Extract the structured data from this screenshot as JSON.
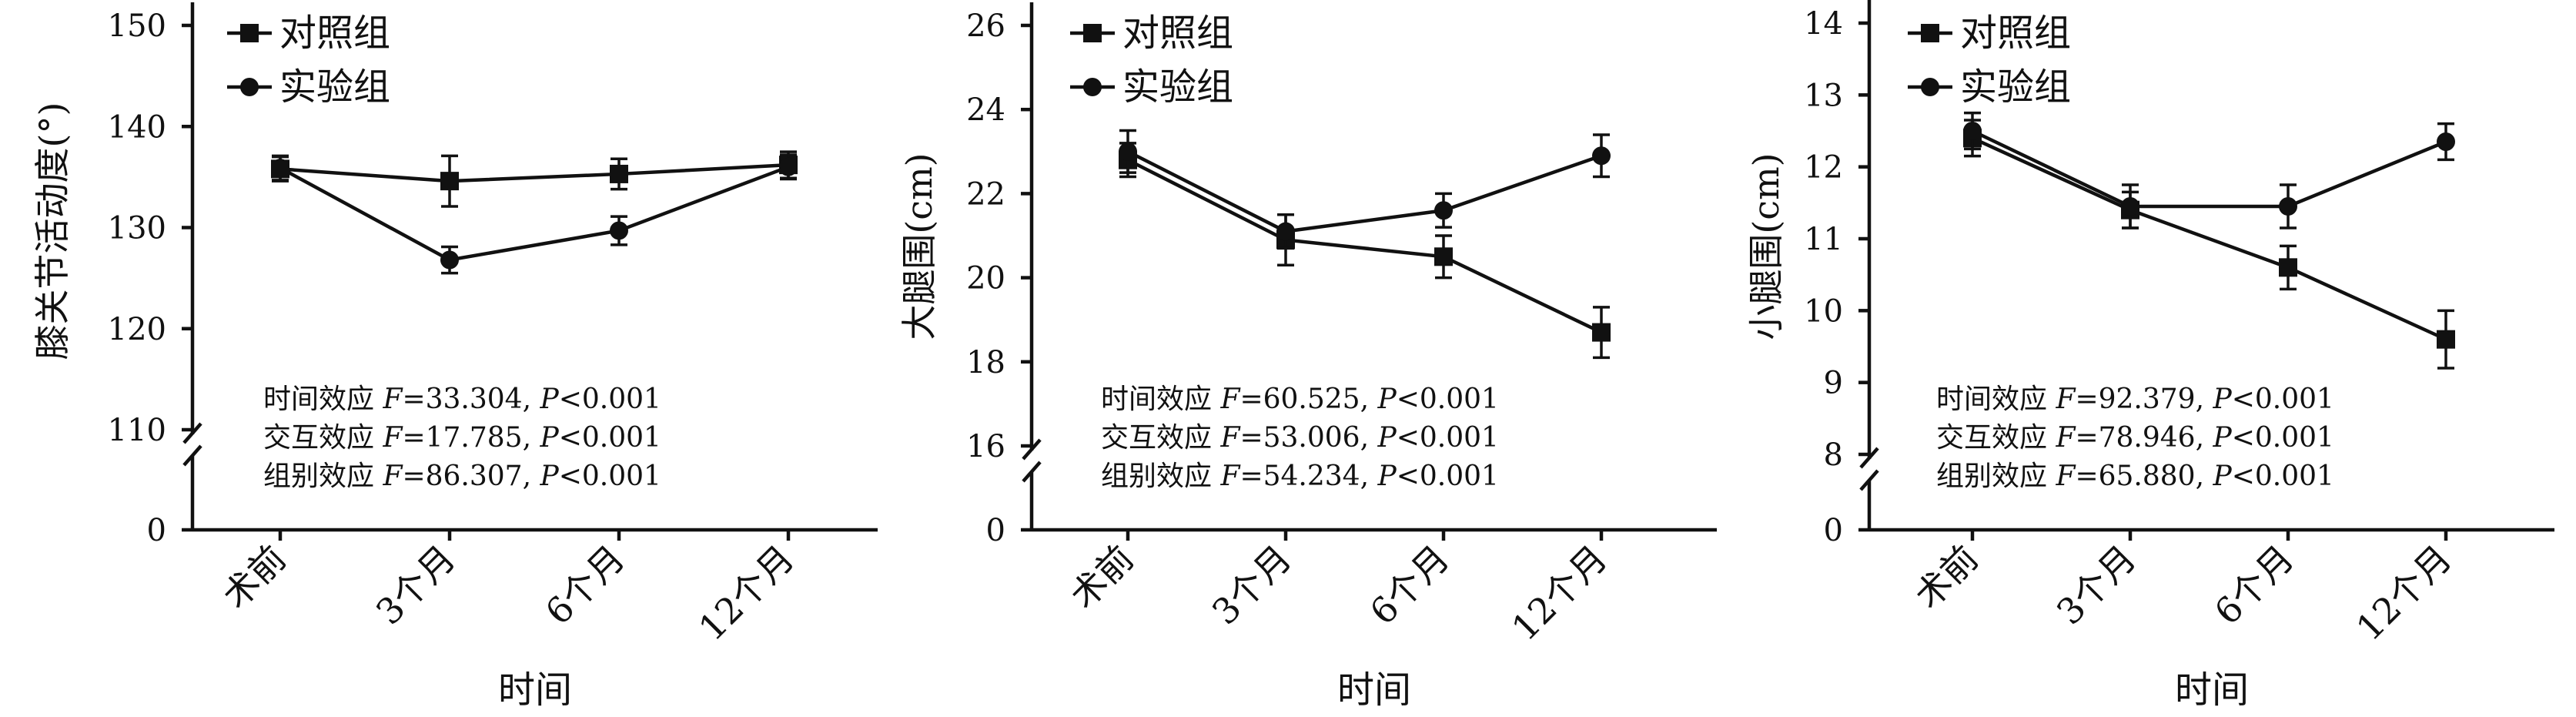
{
  "legend": {
    "control": "对照组",
    "experiment": "实验组"
  },
  "xlabel": "时间",
  "chart_data": [
    {
      "type": "line",
      "ylabel": "膝关节活动度(°)",
      "ylim": [
        110,
        150
      ],
      "yticks": [
        110,
        120,
        130,
        140,
        150
      ],
      "zero_label": "0",
      "categories": [
        "术前",
        "3个月",
        "6个月",
        "12个月"
      ],
      "legend_position": "top-left",
      "series": [
        {
          "name": "对照组",
          "marker": "square",
          "values": [
            135.8,
            134.6,
            135.3,
            136.2
          ],
          "errors": [
            1.2,
            2.5,
            1.5,
            1.3
          ]
        },
        {
          "name": "实验组",
          "marker": "circle",
          "values": [
            135.9,
            126.8,
            129.7,
            136.0
          ],
          "errors": [
            1.2,
            1.3,
            1.4,
            1.2
          ]
        }
      ],
      "annotations": [
        {
          "label": "时间效应 ",
          "stat": "F",
          "rest": "=33.304, ",
          "p": "P",
          "ptext": "<0.001"
        },
        {
          "label": "交互效应 ",
          "stat": "F",
          "rest": "=17.785, ",
          "p": "P",
          "ptext": "<0.001"
        },
        {
          "label": "组别效应 ",
          "stat": "F",
          "rest": "=86.307, ",
          "p": "P",
          "ptext": "<0.001"
        }
      ]
    },
    {
      "type": "line",
      "ylabel": "大腿围(cm)",
      "ylim": [
        16,
        26
      ],
      "yticks": [
        16,
        18,
        20,
        22,
        24,
        26
      ],
      "zero_label": "0",
      "categories": [
        "术前",
        "3个月",
        "6个月",
        "12个月"
      ],
      "legend_position": "top-left",
      "series": [
        {
          "name": "对照组",
          "marker": "square",
          "values": [
            22.8,
            20.9,
            20.5,
            18.7
          ],
          "errors": [
            0.4,
            0.6,
            0.5,
            0.6
          ]
        },
        {
          "name": "实验组",
          "marker": "circle",
          "values": [
            23.0,
            21.1,
            21.6,
            22.9
          ],
          "errors": [
            0.5,
            0.4,
            0.4,
            0.5
          ]
        }
      ],
      "annotations": [
        {
          "label": "时间效应 ",
          "stat": "F",
          "rest": "=60.525, ",
          "p": "P",
          "ptext": "<0.001"
        },
        {
          "label": "交互效应 ",
          "stat": "F",
          "rest": "=53.006, ",
          "p": "P",
          "ptext": "<0.001"
        },
        {
          "label": "组别效应 ",
          "stat": "F",
          "rest": "=54.234, ",
          "p": "P",
          "ptext": "<0.001"
        }
      ]
    },
    {
      "type": "line",
      "ylabel": "小腿围(cm)",
      "ylim": [
        8,
        14
      ],
      "yticks": [
        8,
        9,
        10,
        11,
        12,
        13,
        14
      ],
      "zero_label": "0",
      "categories": [
        "术前",
        "3个月",
        "6个月",
        "12个月"
      ],
      "legend_position": "top-left",
      "series": [
        {
          "name": "对照组",
          "marker": "square",
          "values": [
            12.4,
            11.4,
            10.6,
            9.6
          ],
          "errors": [
            0.25,
            0.25,
            0.3,
            0.4
          ]
        },
        {
          "name": "实验组",
          "marker": "circle",
          "values": [
            12.5,
            11.45,
            11.45,
            12.35
          ],
          "errors": [
            0.25,
            0.3,
            0.3,
            0.25
          ]
        }
      ],
      "annotations": [
        {
          "label": "时间效应 ",
          "stat": "F",
          "rest": "=92.379, ",
          "p": "P",
          "ptext": "<0.001"
        },
        {
          "label": "交互效应 ",
          "stat": "F",
          "rest": "=78.946, ",
          "p": "P",
          "ptext": "<0.001"
        },
        {
          "label": "组别效应 ",
          "stat": "F",
          "rest": "=65.880, ",
          "p": "P",
          "ptext": "<0.001"
        }
      ]
    }
  ]
}
